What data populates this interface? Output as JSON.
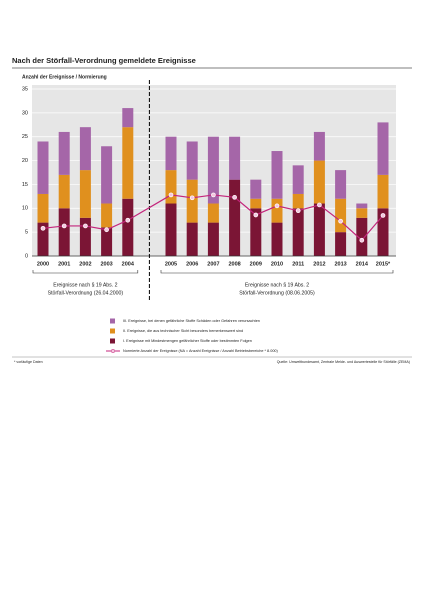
{
  "chart_data": {
    "type": "bar",
    "stacked": true,
    "title": "Nach der Störfall-Verordnung gemeldete Ereignisse",
    "y_label": "Anzahl der Ereignisse / Normierung",
    "categories": [
      "2000",
      "2001",
      "2002",
      "2003",
      "2004",
      "2005",
      "2006",
      "2007",
      "2008",
      "2009",
      "2010",
      "2011",
      "2012",
      "2013",
      "2014",
      "2015*"
    ],
    "series": [
      {
        "name": "I. Ereignisse mit Mindestmengen gefährlicher Stoffe oder bestimmten Folgen",
        "type": "bar",
        "color": "#7b1535",
        "values": [
          7,
          10,
          8,
          6,
          12,
          11,
          7,
          7,
          16,
          10,
          7,
          10,
          11,
          5,
          8,
          10
        ]
      },
      {
        "name": "II. Ereignisse, die aus technischer Sicht besonders bemerkenswert sind",
        "type": "bar",
        "color": "#e0901e",
        "values": [
          6,
          7,
          10,
          5,
          15,
          7,
          9,
          4,
          0,
          2,
          5,
          3,
          9,
          7,
          2,
          7
        ]
      },
      {
        "name": "III. Ereignisse, bei denen gefährliche Stoffe Schäden oder Gefahren verursachten",
        "type": "bar",
        "color": "#a566a8",
        "values": [
          11,
          9,
          9,
          12,
          4,
          7,
          8,
          14,
          9,
          4,
          10,
          6,
          6,
          6,
          1,
          11
        ]
      },
      {
        "name": "Normierte Anzahl der Ereignisse (NA = Anzahl Ereignisse / Anzahl Betriebsbereiche * 8.000)",
        "type": "line",
        "color": "#c4257c",
        "values": [
          5.8,
          6.3,
          6.3,
          5.5,
          7.5,
          12.8,
          12.2,
          12.8,
          12.3,
          8.6,
          10.5,
          9.5,
          10.7,
          7.3,
          3.3,
          8.5
        ]
      }
    ],
    "ylim": [
      0,
      35
    ],
    "yticks": [
      0,
      5,
      10,
      15,
      20,
      25,
      30,
      35
    ],
    "grid": true,
    "periods": [
      {
        "lines": [
          "Ereignisse nach § 19 Abs. 2",
          "Störfall-Verordnung (26.04.2000)"
        ]
      },
      {
        "lines": [
          "Ereignisse nach § 19 Abs. 2",
          "Störfall-Verordnung (08.06.2005)"
        ]
      }
    ],
    "footnote": "* vorläufige Daten",
    "source": "Quelle: Umweltbundesamt, Zentrale Melde- und Auswertestelle für Störfälle (ZEMA)"
  }
}
